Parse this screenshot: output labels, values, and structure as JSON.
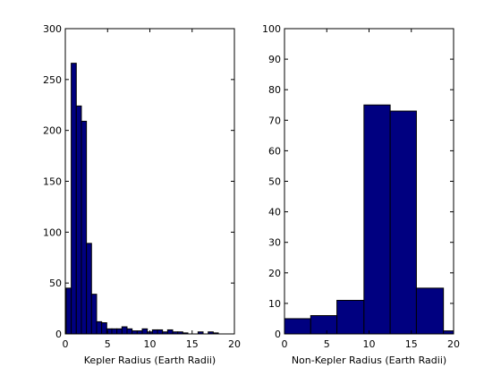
{
  "chart_data": [
    {
      "type": "bar",
      "subtype": "histogram",
      "title": "",
      "xlabel": "Kepler Radius (Earth Radii)",
      "ylabel": "",
      "xlim": [
        0,
        20
      ],
      "ylim": [
        0,
        300
      ],
      "xticks": [
        0,
        5,
        10,
        15,
        20
      ],
      "yticks": [
        0,
        50,
        100,
        150,
        200,
        250,
        300
      ],
      "grid": false,
      "bar_color": "#000080",
      "edge_color": "#000000",
      "bin_width": 0.6,
      "x_start": 0.1,
      "values": [
        45,
        266,
        224,
        209,
        89,
        39,
        12,
        11,
        5,
        5,
        5,
        7,
        5,
        3,
        3,
        5,
        2,
        4,
        4,
        2,
        4,
        2,
        2,
        1,
        0,
        0,
        2,
        0,
        2,
        1
      ]
    },
    {
      "type": "bar",
      "subtype": "histogram",
      "title": "",
      "xlabel": "Non-Kepler Radius (Earth Radii)",
      "ylabel": "",
      "xlim": [
        0,
        20
      ],
      "ylim": [
        0,
        100
      ],
      "xticks": [
        0,
        5,
        10,
        15,
        20
      ],
      "yticks": [
        0,
        10,
        20,
        30,
        40,
        50,
        60,
        70,
        80,
        90,
        100
      ],
      "grid": false,
      "bar_color": "#000080",
      "edge_color": "#000000",
      "bin_edges": [
        0,
        3.1,
        6.2,
        9.4,
        12.5,
        15.6,
        18.8,
        20
      ],
      "values": [
        5,
        6,
        11,
        75,
        73,
        15,
        1
      ]
    }
  ]
}
